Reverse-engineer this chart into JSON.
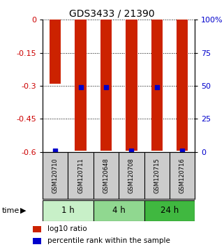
{
  "title": "GDS3433 / 21390",
  "samples": [
    "GSM120710",
    "GSM120711",
    "GSM120648",
    "GSM120708",
    "GSM120715",
    "GSM120716"
  ],
  "groups": [
    {
      "label": "1 h",
      "indices": [
        0,
        1
      ],
      "color": "#c8f0c8"
    },
    {
      "label": "4 h",
      "indices": [
        2,
        3
      ],
      "color": "#90d890"
    },
    {
      "label": "24 h",
      "indices": [
        4,
        5
      ],
      "color": "#40b840"
    }
  ],
  "log10_ratio_bottom": [
    -0.29,
    -0.595,
    -0.595,
    -0.595,
    -0.595,
    -0.595
  ],
  "log10_ratio_top": [
    0.0,
    0.0,
    0.0,
    0.0,
    0.0,
    0.0
  ],
  "percentile_rank": [
    1.0,
    49.0,
    49.0,
    1.0,
    49.0,
    1.0
  ],
  "yticks_left": [
    0,
    -0.15,
    -0.3,
    -0.45,
    -0.6
  ],
  "ytick_labels_left": [
    "0",
    "-0.15",
    "-0.3",
    "-0.45",
    "-0.6"
  ],
  "yticks_right": [
    100,
    75,
    50,
    25,
    0
  ],
  "ytick_labels_right": [
    "100%",
    "75",
    "50",
    "25",
    "0"
  ],
  "left_axis_color": "#cc0000",
  "right_axis_color": "#0000cc",
  "bar_color": "#cc2200",
  "dot_color": "#0000cc",
  "bar_width": 0.45,
  "dot_size": 25,
  "background_color": "#ffffff",
  "legend_red_label": "log10 ratio",
  "legend_blue_label": "percentile rank within the sample",
  "sample_box_color": "#cccccc",
  "grid_color": "#000000",
  "grid_style": "dotted"
}
